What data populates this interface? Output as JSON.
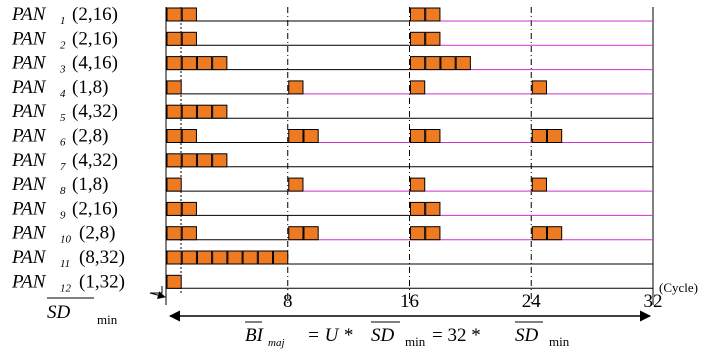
{
  "rows": [
    {
      "name": "PAN",
      "sub": "1",
      "params": "(2,16)",
      "slots": 2,
      "period_slots": 16
    },
    {
      "name": "PAN",
      "sub": "2",
      "params": "(2,16)",
      "slots": 2,
      "period_slots": 16
    },
    {
      "name": "PAN",
      "sub": "3",
      "params": "(4,16)",
      "slots": 4,
      "period_slots": 16
    },
    {
      "name": "PAN",
      "sub": "4",
      "params": "(1,8)",
      "slots": 1,
      "period_slots": 8
    },
    {
      "name": "PAN",
      "sub": "5",
      "params": "(4,32)",
      "slots": 4,
      "period_slots": 32
    },
    {
      "name": "PAN",
      "sub": "6",
      "params": "(2,8)",
      "slots": 2,
      "period_slots": 8
    },
    {
      "name": "PAN",
      "sub": "7",
      "params": "(4,32)",
      "slots": 4,
      "period_slots": 32
    },
    {
      "name": "PAN",
      "sub": "8",
      "params": "(1,8)",
      "slots": 1,
      "period_slots": 8
    },
    {
      "name": "PAN",
      "sub": "9",
      "params": "(2,16)",
      "slots": 2,
      "period_slots": 16
    },
    {
      "name": "PAN",
      "sub": "10",
      "params": "(2,8)",
      "slots": 2,
      "period_slots": 8
    },
    {
      "name": "PAN",
      "sub": "11",
      "params": "(8,32)",
      "slots": 8,
      "period_slots": 32
    },
    {
      "name": "PAN",
      "sub": "12",
      "params": "(1,32)",
      "slots": 1,
      "period_slots": 32
    }
  ],
  "axis": {
    "ticks": [
      "8",
      "16",
      "24",
      "32"
    ],
    "tick_values": [
      8,
      16,
      24,
      32
    ],
    "unit_label": "(Cycle)",
    "max": 32
  },
  "sd_label": {
    "main": "SD",
    "sub": "min"
  },
  "formula": {
    "bi": "BI",
    "bi_sub": "maj",
    "eq1": "= U *",
    "sd": "SD",
    "sd_sub": "min",
    "eq2": "= 32 *",
    "sd2": "SD",
    "sd2_sub": "min"
  },
  "colors": {
    "slot_fill": "#ee7a22",
    "first_period_line": "#000000",
    "later_period_line": "#cc33cc"
  }
}
